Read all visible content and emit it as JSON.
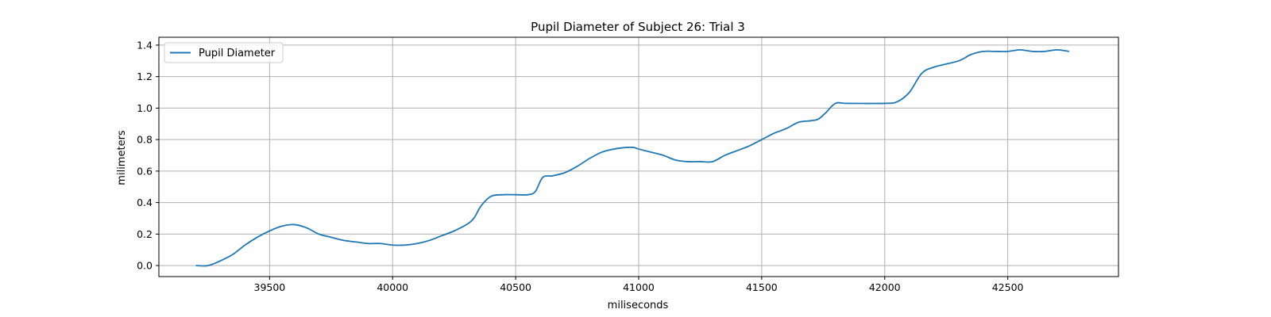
{
  "chart_data": {
    "type": "line",
    "title": "Pupil Diameter of Subject 26: Trial 3",
    "xlabel": "miliseconds",
    "ylabel": "milimeters",
    "xlim": [
      39050,
      42950
    ],
    "ylim": [
      -0.07,
      1.45
    ],
    "xticks": [
      39500,
      40000,
      40500,
      41000,
      41500,
      42000,
      42500
    ],
    "yticks": [
      0.0,
      0.2,
      0.4,
      0.6,
      0.8,
      1.0,
      1.2,
      1.4
    ],
    "ytick_labels": [
      "0.0",
      "0.2",
      "0.4",
      "0.6",
      "0.8",
      "1.0",
      "1.2",
      "1.4"
    ],
    "grid": true,
    "legend": "upper-left",
    "color": "#1f77b4",
    "series": [
      {
        "name": "Pupil Diameter",
        "x": [
          39200,
          39250,
          39300,
          39350,
          39400,
          39450,
          39500,
          39550,
          39600,
          39650,
          39700,
          39750,
          39800,
          39850,
          39900,
          39950,
          40000,
          40050,
          40100,
          40150,
          40200,
          40250,
          40300,
          40330,
          40360,
          40400,
          40450,
          40500,
          40550,
          40580,
          40610,
          40650,
          40700,
          40750,
          40800,
          40850,
          40900,
          40950,
          40980,
          41000,
          41050,
          41100,
          41150,
          41200,
          41250,
          41300,
          41350,
          41400,
          41450,
          41500,
          41550,
          41600,
          41650,
          41700,
          41730,
          41760,
          41800,
          41850,
          42000,
          42050,
          42100,
          42150,
          42200,
          42300,
          42350,
          42400,
          42450,
          42500,
          42550,
          42600,
          42650,
          42700,
          42750
        ],
        "y": [
          0.0,
          0.0,
          0.03,
          0.07,
          0.13,
          0.18,
          0.22,
          0.25,
          0.26,
          0.24,
          0.2,
          0.18,
          0.16,
          0.15,
          0.14,
          0.14,
          0.13,
          0.13,
          0.14,
          0.16,
          0.19,
          0.22,
          0.26,
          0.3,
          0.38,
          0.44,
          0.45,
          0.45,
          0.45,
          0.47,
          0.56,
          0.57,
          0.59,
          0.63,
          0.68,
          0.72,
          0.74,
          0.75,
          0.75,
          0.74,
          0.72,
          0.7,
          0.67,
          0.66,
          0.66,
          0.66,
          0.7,
          0.73,
          0.76,
          0.8,
          0.84,
          0.87,
          0.91,
          0.92,
          0.93,
          0.97,
          1.03,
          1.03,
          1.03,
          1.04,
          1.1,
          1.22,
          1.26,
          1.3,
          1.34,
          1.36,
          1.36,
          1.36,
          1.37,
          1.36,
          1.36,
          1.37,
          1.36
        ]
      }
    ]
  }
}
